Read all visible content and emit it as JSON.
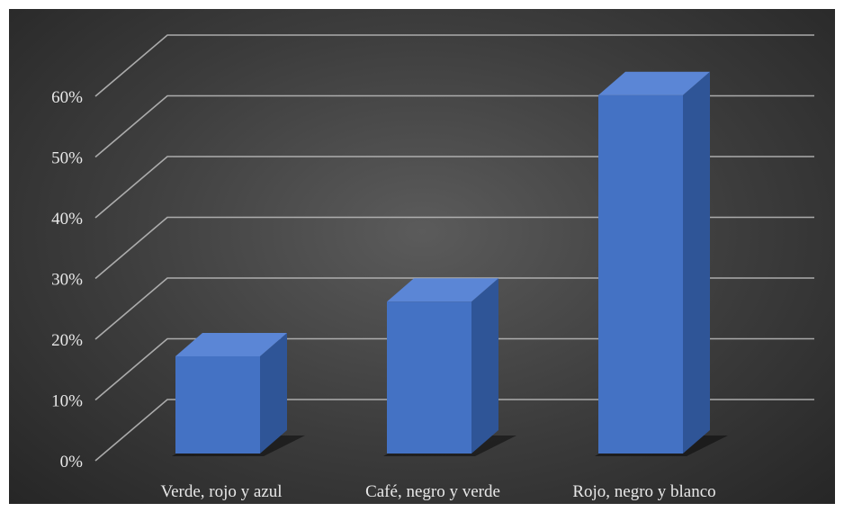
{
  "chart_data": {
    "type": "bar",
    "style": "3d-column",
    "categories": [
      "Verde, rojo y azul",
      "Café, negro y verde",
      "Rojo, negro y blanco"
    ],
    "values": [
      0.16,
      0.25,
      0.59
    ],
    "value_format": "percent",
    "ylim": [
      0,
      0.6
    ],
    "y_ticks": [
      0,
      0.1,
      0.2,
      0.3,
      0.4,
      0.5,
      0.6
    ],
    "y_tick_labels": [
      "0%",
      "10%",
      "20%",
      "30%",
      "40%",
      "50%",
      "60%"
    ],
    "title": "",
    "xlabel": "",
    "ylabel": "",
    "grid": true,
    "legend": "none",
    "colors": {
      "bar_front": "#4472c4",
      "bar_side": "#2f5597",
      "bar_top": "#5b86d6",
      "background": "#3a3a3a",
      "gridline": "#bfbfbf",
      "text": "#e8e8e8"
    }
  }
}
